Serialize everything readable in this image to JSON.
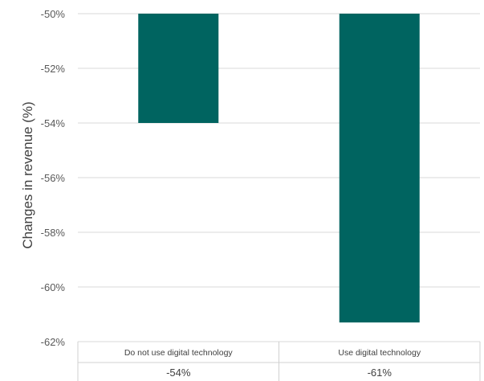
{
  "chart_data": {
    "type": "bar",
    "ylabel": "Changes in revenue (%)",
    "ylim": [
      -62,
      -50
    ],
    "y_ticks": [
      -50,
      -52,
      -54,
      -56,
      -58,
      -60,
      -62
    ],
    "y_tick_labels": [
      "-50%",
      "-52%",
      "-54%",
      "-56%",
      "-58%",
      "-60%",
      "-62%"
    ],
    "categories": [
      "Do not use digital technology",
      "Use digital technology"
    ],
    "values": [
      -54,
      -61.3
    ],
    "value_labels": [
      "-54%",
      "-61%"
    ],
    "bar_color": "#006460",
    "grid": true,
    "data_table": true
  }
}
